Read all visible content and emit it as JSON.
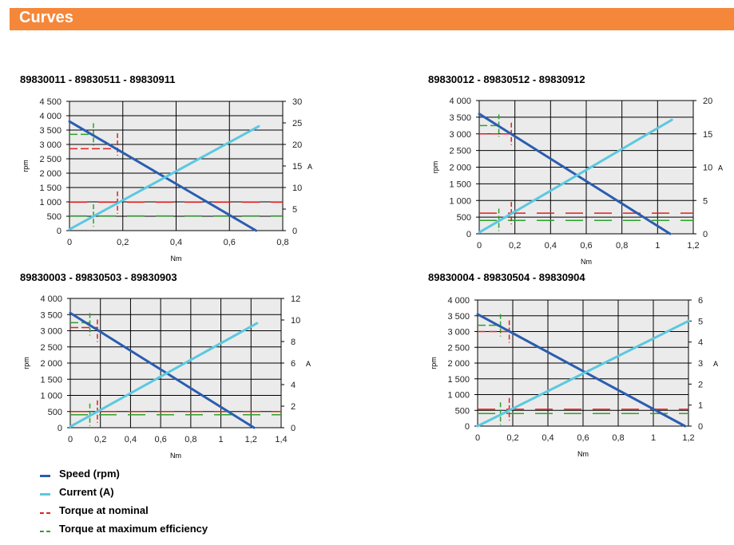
{
  "header": {
    "title": "Curves"
  },
  "legend": {
    "items": [
      {
        "label": "Speed (rpm)",
        "color": "#2a5db0",
        "style": "solid"
      },
      {
        "label": "Current (A)",
        "color": "#5bc8e0",
        "style": "solid"
      },
      {
        "label": "Torque at nominal",
        "color": "#e02020",
        "style": "dashed"
      },
      {
        "label": "Torque at maximum efficiency",
        "color": "#2ca02c",
        "style": "dashed"
      }
    ]
  },
  "colors": {
    "speed": "#2a5db0",
    "current": "#5bc8e0",
    "nominal": "#e02020",
    "efficiency": "#2ca02c",
    "plot_bg": "#ebebeb",
    "accent": "#f5873a"
  },
  "chart_data": [
    {
      "type": "line",
      "title": "89830011 - 89830511 - 89830911",
      "xlabel": "Nm",
      "ylabel": "rpm",
      "y2label": "A",
      "xlim": [
        0,
        0.8
      ],
      "ylim": [
        0,
        4500
      ],
      "y2lim": [
        0,
        30
      ],
      "xticks": [
        "0",
        "0,2",
        "0,4",
        "0,6",
        "0,8"
      ],
      "yticks": [
        "0",
        "500",
        "1 000",
        "1 500",
        "2 000",
        "2 500",
        "3 000",
        "3 500",
        "4 000",
        "4 500"
      ],
      "y2ticks": [
        "0",
        "5",
        "10",
        "15",
        "20",
        "25",
        "30"
      ],
      "grid": true,
      "series": [
        {
          "name": "Speed (rpm)",
          "axis": "left",
          "x": [
            0,
            0.7
          ],
          "y": [
            3800,
            0
          ]
        },
        {
          "name": "Current (A)",
          "axis": "right",
          "x": [
            0,
            0.71
          ],
          "y": [
            0.3,
            24.2
          ]
        }
      ],
      "markers": {
        "nominal": {
          "x": 0.18,
          "speed": 3000,
          "current": 6.5,
          "speed_level": 2850,
          "current_level": 6.6
        },
        "efficiency": {
          "x": 0.09,
          "speed": 3350,
          "current": 3.5,
          "speed_level": 3350,
          "current_level": 3.4
        }
      }
    },
    {
      "type": "line",
      "title": "89830012 - 89830512 - 89830912",
      "xlabel": "Nm",
      "ylabel": "rpm",
      "y2label": "A",
      "xlim": [
        0,
        1.2
      ],
      "ylim": [
        0,
        4000
      ],
      "y2lim": [
        0,
        20
      ],
      "xticks": [
        "0",
        "0,2",
        "0,4",
        "0,6",
        "0,8",
        "1",
        "1,2"
      ],
      "yticks": [
        "0",
        "500",
        "1 000",
        "1 500",
        "2 000",
        "2 500",
        "3 000",
        "3 500",
        "4 000"
      ],
      "y2ticks": [
        "0",
        "5",
        "10",
        "15",
        "20"
      ],
      "grid": true,
      "series": [
        {
          "name": "Speed (rpm)",
          "axis": "left",
          "x": [
            0,
            1.07
          ],
          "y": [
            3600,
            0
          ]
        },
        {
          "name": "Current (A)",
          "axis": "right",
          "x": [
            0,
            1.08
          ],
          "y": [
            0.2,
            17.1
          ]
        }
      ],
      "markers": {
        "nominal": {
          "x": 0.18,
          "speed": 3000,
          "current": 3.1,
          "speed_level": 3000,
          "current_level": 3.1
        },
        "efficiency": {
          "x": 0.11,
          "speed": 3250,
          "current": 2.1,
          "speed_level": 3250,
          "current_level": 2.0
        }
      }
    },
    {
      "type": "line",
      "title": "89830003 - 89830503 - 89830903",
      "xlabel": "Nm",
      "ylabel": "rpm",
      "y2label": "A",
      "xlim": [
        0,
        1.4
      ],
      "ylim": [
        0,
        4000
      ],
      "y2lim": [
        0,
        12
      ],
      "xticks": [
        "0",
        "0,2",
        "0,4",
        "0,6",
        "0,8",
        "1",
        "1,2",
        "1,4"
      ],
      "yticks": [
        "0",
        "500",
        "1 000",
        "1 500",
        "2 000",
        "2 500",
        "3 000",
        "3 500",
        "4 000"
      ],
      "y2ticks": [
        "0",
        "2",
        "4",
        "6",
        "8",
        "10",
        "12"
      ],
      "grid": true,
      "series": [
        {
          "name": "Speed (rpm)",
          "axis": "left",
          "x": [
            0,
            1.22
          ],
          "y": [
            3550,
            0
          ]
        },
        {
          "name": "Current (A)",
          "axis": "right",
          "x": [
            0,
            1.24
          ],
          "y": [
            0.1,
            9.7
          ]
        }
      ],
      "markers": {
        "nominal": {
          "x": 0.18,
          "speed": 3000,
          "current": 1.5,
          "speed_level": 3100,
          "current_level": 1.5
        },
        "efficiency": {
          "x": 0.13,
          "speed": 3200,
          "current": 1.2,
          "speed_level": 3250,
          "current_level": 1.2
        }
      }
    },
    {
      "type": "line",
      "title": "89830004 - 89830504 - 89830904",
      "xlabel": "Nm",
      "ylabel": "rpm",
      "y2label": "A",
      "xlim": [
        0,
        1.2
      ],
      "ylim": [
        0,
        4000
      ],
      "y2lim": [
        0,
        6
      ],
      "xticks": [
        "0",
        "0,2",
        "0,4",
        "0,6",
        "0,8",
        "1",
        "1,2"
      ],
      "yticks": [
        "0",
        "500",
        "1 000",
        "1 500",
        "2 000",
        "2 500",
        "3 000",
        "3 500",
        "4 000"
      ],
      "y2ticks": [
        "0",
        "1",
        "2",
        "3",
        "4",
        "5",
        "6"
      ],
      "grid": true,
      "series": [
        {
          "name": "Speed (rpm)",
          "axis": "left",
          "x": [
            0,
            1.18
          ],
          "y": [
            3550,
            0
          ]
        },
        {
          "name": "Current (A)",
          "axis": "right",
          "x": [
            0,
            1.2
          ],
          "y": [
            0.0,
            5.0
          ]
        }
      ],
      "markers": {
        "nominal": {
          "x": 0.18,
          "speed": 3000,
          "current": 0.8,
          "speed_level": 3000,
          "current_level": 0.8
        },
        "efficiency": {
          "x": 0.13,
          "speed": 3200,
          "current": 0.6,
          "speed_level": 3200,
          "current_level": 0.6
        }
      }
    }
  ]
}
